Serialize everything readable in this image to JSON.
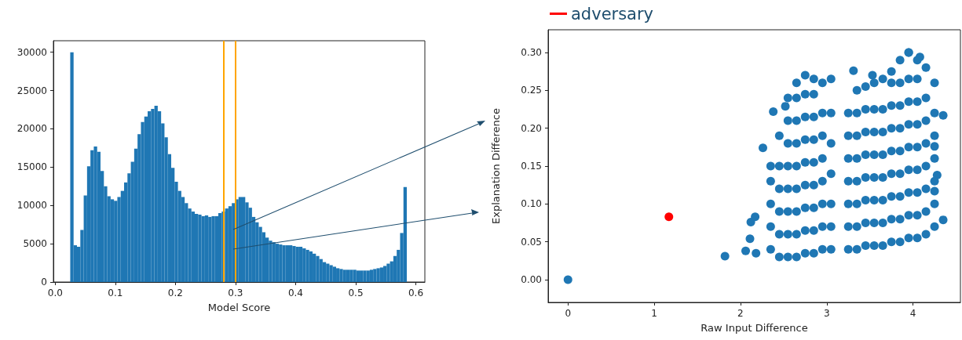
{
  "chart_data": [
    {
      "type": "histogram",
      "xlabel": "Model Score",
      "color": "#1f77b4",
      "bins": [
        0.025,
        0.0306,
        0.0362,
        0.0418,
        0.0474,
        0.053,
        0.0586,
        0.0642,
        0.0698,
        0.0754,
        0.081,
        0.0866,
        0.0922,
        0.0978,
        0.1034,
        0.109,
        0.1146,
        0.1202,
        0.1258,
        0.1314,
        0.137,
        0.1426,
        0.1482,
        0.1538,
        0.1594,
        0.165,
        0.1706,
        0.1762,
        0.1818,
        0.1874,
        0.193,
        0.1986,
        0.2042,
        0.2098,
        0.2154,
        0.221,
        0.2266,
        0.2322,
        0.2378,
        0.2434,
        0.249,
        0.2546,
        0.2602,
        0.2658,
        0.2714,
        0.277,
        0.2826,
        0.2882,
        0.2938,
        0.2994,
        0.305,
        0.3106,
        0.3162,
        0.3218,
        0.3274,
        0.333,
        0.3386,
        0.3442,
        0.3498,
        0.3554,
        0.361,
        0.3666,
        0.3722,
        0.3778,
        0.3834,
        0.389,
        0.3946,
        0.4002,
        0.4058,
        0.4114,
        0.417,
        0.4226,
        0.4282,
        0.4338,
        0.4394,
        0.445,
        0.4506,
        0.4562,
        0.4618,
        0.4674,
        0.473,
        0.4786,
        0.4842,
        0.4898,
        0.4954,
        0.501,
        0.5066,
        0.5122,
        0.5178,
        0.5234,
        0.529,
        0.5346,
        0.5402,
        0.5458,
        0.5514,
        0.557,
        0.5626,
        0.5682,
        0.5738,
        0.5794,
        0.585
      ],
      "values": [
        30000,
        4800,
        4600,
        6800,
        11300,
        15100,
        17200,
        17700,
        17000,
        14500,
        12500,
        11200,
        10800,
        10600,
        11100,
        11900,
        13000,
        14200,
        15700,
        17400,
        19300,
        20900,
        21600,
        22300,
        22600,
        23000,
        22300,
        20700,
        18900,
        16700,
        14900,
        13100,
        11900,
        11100,
        10300,
        9600,
        9200,
        8900,
        8800,
        8600,
        8700,
        8500,
        8600,
        8600,
        9000,
        9200,
        9600,
        9900,
        10300,
        10800,
        11100,
        11100,
        10400,
        9700,
        8500,
        7800,
        7200,
        6500,
        5800,
        5400,
        5200,
        5000,
        4900,
        4800,
        4800,
        4800,
        4700,
        4600,
        4600,
        4400,
        4200,
        4000,
        3700,
        3400,
        3000,
        2600,
        2400,
        2200,
        2000,
        1800,
        1700,
        1600,
        1600,
        1600,
        1600,
        1500,
        1500,
        1500,
        1500,
        1600,
        1700,
        1800,
        1900,
        2100,
        2400,
        2700,
        3400,
        4200,
        6400,
        12400
      ],
      "xlim": [
        -0.003,
        0.615
      ],
      "ylim": [
        0,
        31500
      ],
      "xticks": [
        {
          "value": 0,
          "label": "0.0"
        },
        0.1,
        0.2,
        0.3,
        0.4,
        0.5,
        0.6
      ],
      "yticks": [
        0,
        5000,
        10000,
        15000,
        20000,
        25000,
        30000
      ],
      "ref_lines": [
        {
          "axis": "x",
          "value": 0.28,
          "color": "#ffa500"
        },
        {
          "axis": "x",
          "value": 0.3,
          "color": "#ffa500"
        }
      ],
      "grid": false
    },
    {
      "type": "scatter",
      "xlabel": "Raw Input Difference",
      "ylabel": "Explanation Difference",
      "xlim": [
        -0.23,
        4.55
      ],
      "ylim": [
        -0.03,
        0.33
      ],
      "xticks": [
        0,
        1,
        2,
        3,
        4
      ],
      "yticks": [
        {
          "value": 0,
          "label": "0.00"
        },
        0.05,
        {
          "value": 0.1,
          "label": "0.10"
        },
        0.15,
        {
          "value": 0.2,
          "label": "0.20"
        },
        0.25,
        {
          "value": 0.3,
          "label": "0.30"
        }
      ],
      "marker": "circle",
      "legend": "top left",
      "grid": false,
      "series": [
        {
          "color": "#1f77b4",
          "x": [
            0,
            1.82,
            2.06,
            2.18,
            2.12,
            2.17,
            2.11,
            2.26,
            2.38,
            2.52,
            3.31,
            3.53,
            4.35,
            4.35,
            4.25,
            4.28,
            4.25,
            3.95,
            4.08,
            2.35,
            2.35,
            2.35,
            2.35,
            2.35,
            2.45,
            2.45,
            2.45,
            2.45,
            2.45,
            2.45,
            2.55,
            2.55,
            2.55,
            2.55,
            2.55,
            2.55,
            2.55,
            2.55,
            2.65,
            2.65,
            2.65,
            2.65,
            2.65,
            2.65,
            2.65,
            2.65,
            2.65,
            2.75,
            2.75,
            2.75,
            2.75,
            2.75,
            2.75,
            2.75,
            2.75,
            2.75,
            2.85,
            2.85,
            2.85,
            2.85,
            2.85,
            2.85,
            2.85,
            2.85,
            2.85,
            2.95,
            2.95,
            2.95,
            2.95,
            2.95,
            2.95,
            2.95,
            2.95,
            3.05,
            3.05,
            3.05,
            3.05,
            3.05,
            3.05,
            3.05,
            3.25,
            3.25,
            3.25,
            3.25,
            3.25,
            3.25,
            3.25,
            3.35,
            3.35,
            3.35,
            3.35,
            3.35,
            3.35,
            3.35,
            3.35,
            3.45,
            3.45,
            3.45,
            3.45,
            3.45,
            3.45,
            3.45,
            3.45,
            3.55,
            3.55,
            3.55,
            3.55,
            3.55,
            3.55,
            3.55,
            3.55,
            3.65,
            3.65,
            3.65,
            3.65,
            3.65,
            3.65,
            3.65,
            3.65,
            3.75,
            3.75,
            3.75,
            3.75,
            3.75,
            3.75,
            3.75,
            3.75,
            3.75,
            3.85,
            3.85,
            3.85,
            3.85,
            3.85,
            3.85,
            3.85,
            3.85,
            3.85,
            3.95,
            3.95,
            3.95,
            3.95,
            3.95,
            3.95,
            3.95,
            3.95,
            3.95,
            4.05,
            4.05,
            4.05,
            4.05,
            4.05,
            4.05,
            4.05,
            4.05,
            4.05,
            4.15,
            4.15,
            4.15,
            4.15,
            4.15,
            4.15,
            4.15,
            4.15,
            4.25,
            4.25,
            4.25,
            4.25,
            4.25,
            4.25,
            4.25
          ],
          "values": [
            0,
            0.031,
            0.038,
            0.035,
            0.076,
            0.083,
            0.054,
            0.174,
            0.222,
            0.229,
            0.276,
            0.27,
            0.217,
            0.079,
            0.176,
            0.138,
            0.117,
            0.3,
            0.294,
            0.04,
            0.07,
            0.1,
            0.13,
            0.15,
            0.03,
            0.06,
            0.09,
            0.12,
            0.15,
            0.19,
            0.03,
            0.06,
            0.09,
            0.12,
            0.15,
            0.18,
            0.21,
            0.24,
            0.03,
            0.06,
            0.09,
            0.12,
            0.15,
            0.18,
            0.21,
            0.24,
            0.26,
            0.035,
            0.065,
            0.095,
            0.125,
            0.155,
            0.185,
            0.215,
            0.245,
            0.27,
            0.035,
            0.065,
            0.095,
            0.125,
            0.155,
            0.185,
            0.215,
            0.245,
            0.265,
            0.04,
            0.07,
            0.1,
            0.13,
            0.16,
            0.19,
            0.22,
            0.26,
            0.04,
            0.07,
            0.1,
            0.14,
            0.18,
            0.22,
            0.265,
            0.04,
            0.07,
            0.1,
            0.13,
            0.16,
            0.19,
            0.22,
            0.04,
            0.07,
            0.1,
            0.13,
            0.16,
            0.19,
            0.22,
            0.25,
            0.045,
            0.075,
            0.105,
            0.135,
            0.165,
            0.195,
            0.225,
            0.255,
            0.045,
            0.075,
            0.105,
            0.135,
            0.165,
            0.195,
            0.225,
            0.26,
            0.045,
            0.075,
            0.105,
            0.135,
            0.165,
            0.195,
            0.225,
            0.265,
            0.05,
            0.08,
            0.11,
            0.14,
            0.17,
            0.2,
            0.23,
            0.26,
            0.275,
            0.05,
            0.08,
            0.11,
            0.14,
            0.17,
            0.2,
            0.23,
            0.26,
            0.29,
            0.055,
            0.085,
            0.115,
            0.145,
            0.175,
            0.205,
            0.235,
            0.265,
            0.3,
            0.055,
            0.085,
            0.115,
            0.145,
            0.175,
            0.205,
            0.235,
            0.265,
            0.29,
            0.06,
            0.09,
            0.12,
            0.15,
            0.18,
            0.21,
            0.24,
            0.28,
            0.07,
            0.1,
            0.13,
            0.16,
            0.19,
            0.22,
            0.26
          ]
        },
        {
          "name": "adversary",
          "color": "#ff0000",
          "x": [
            1.17
          ],
          "values": [
            0.083
          ]
        }
      ]
    }
  ]
}
